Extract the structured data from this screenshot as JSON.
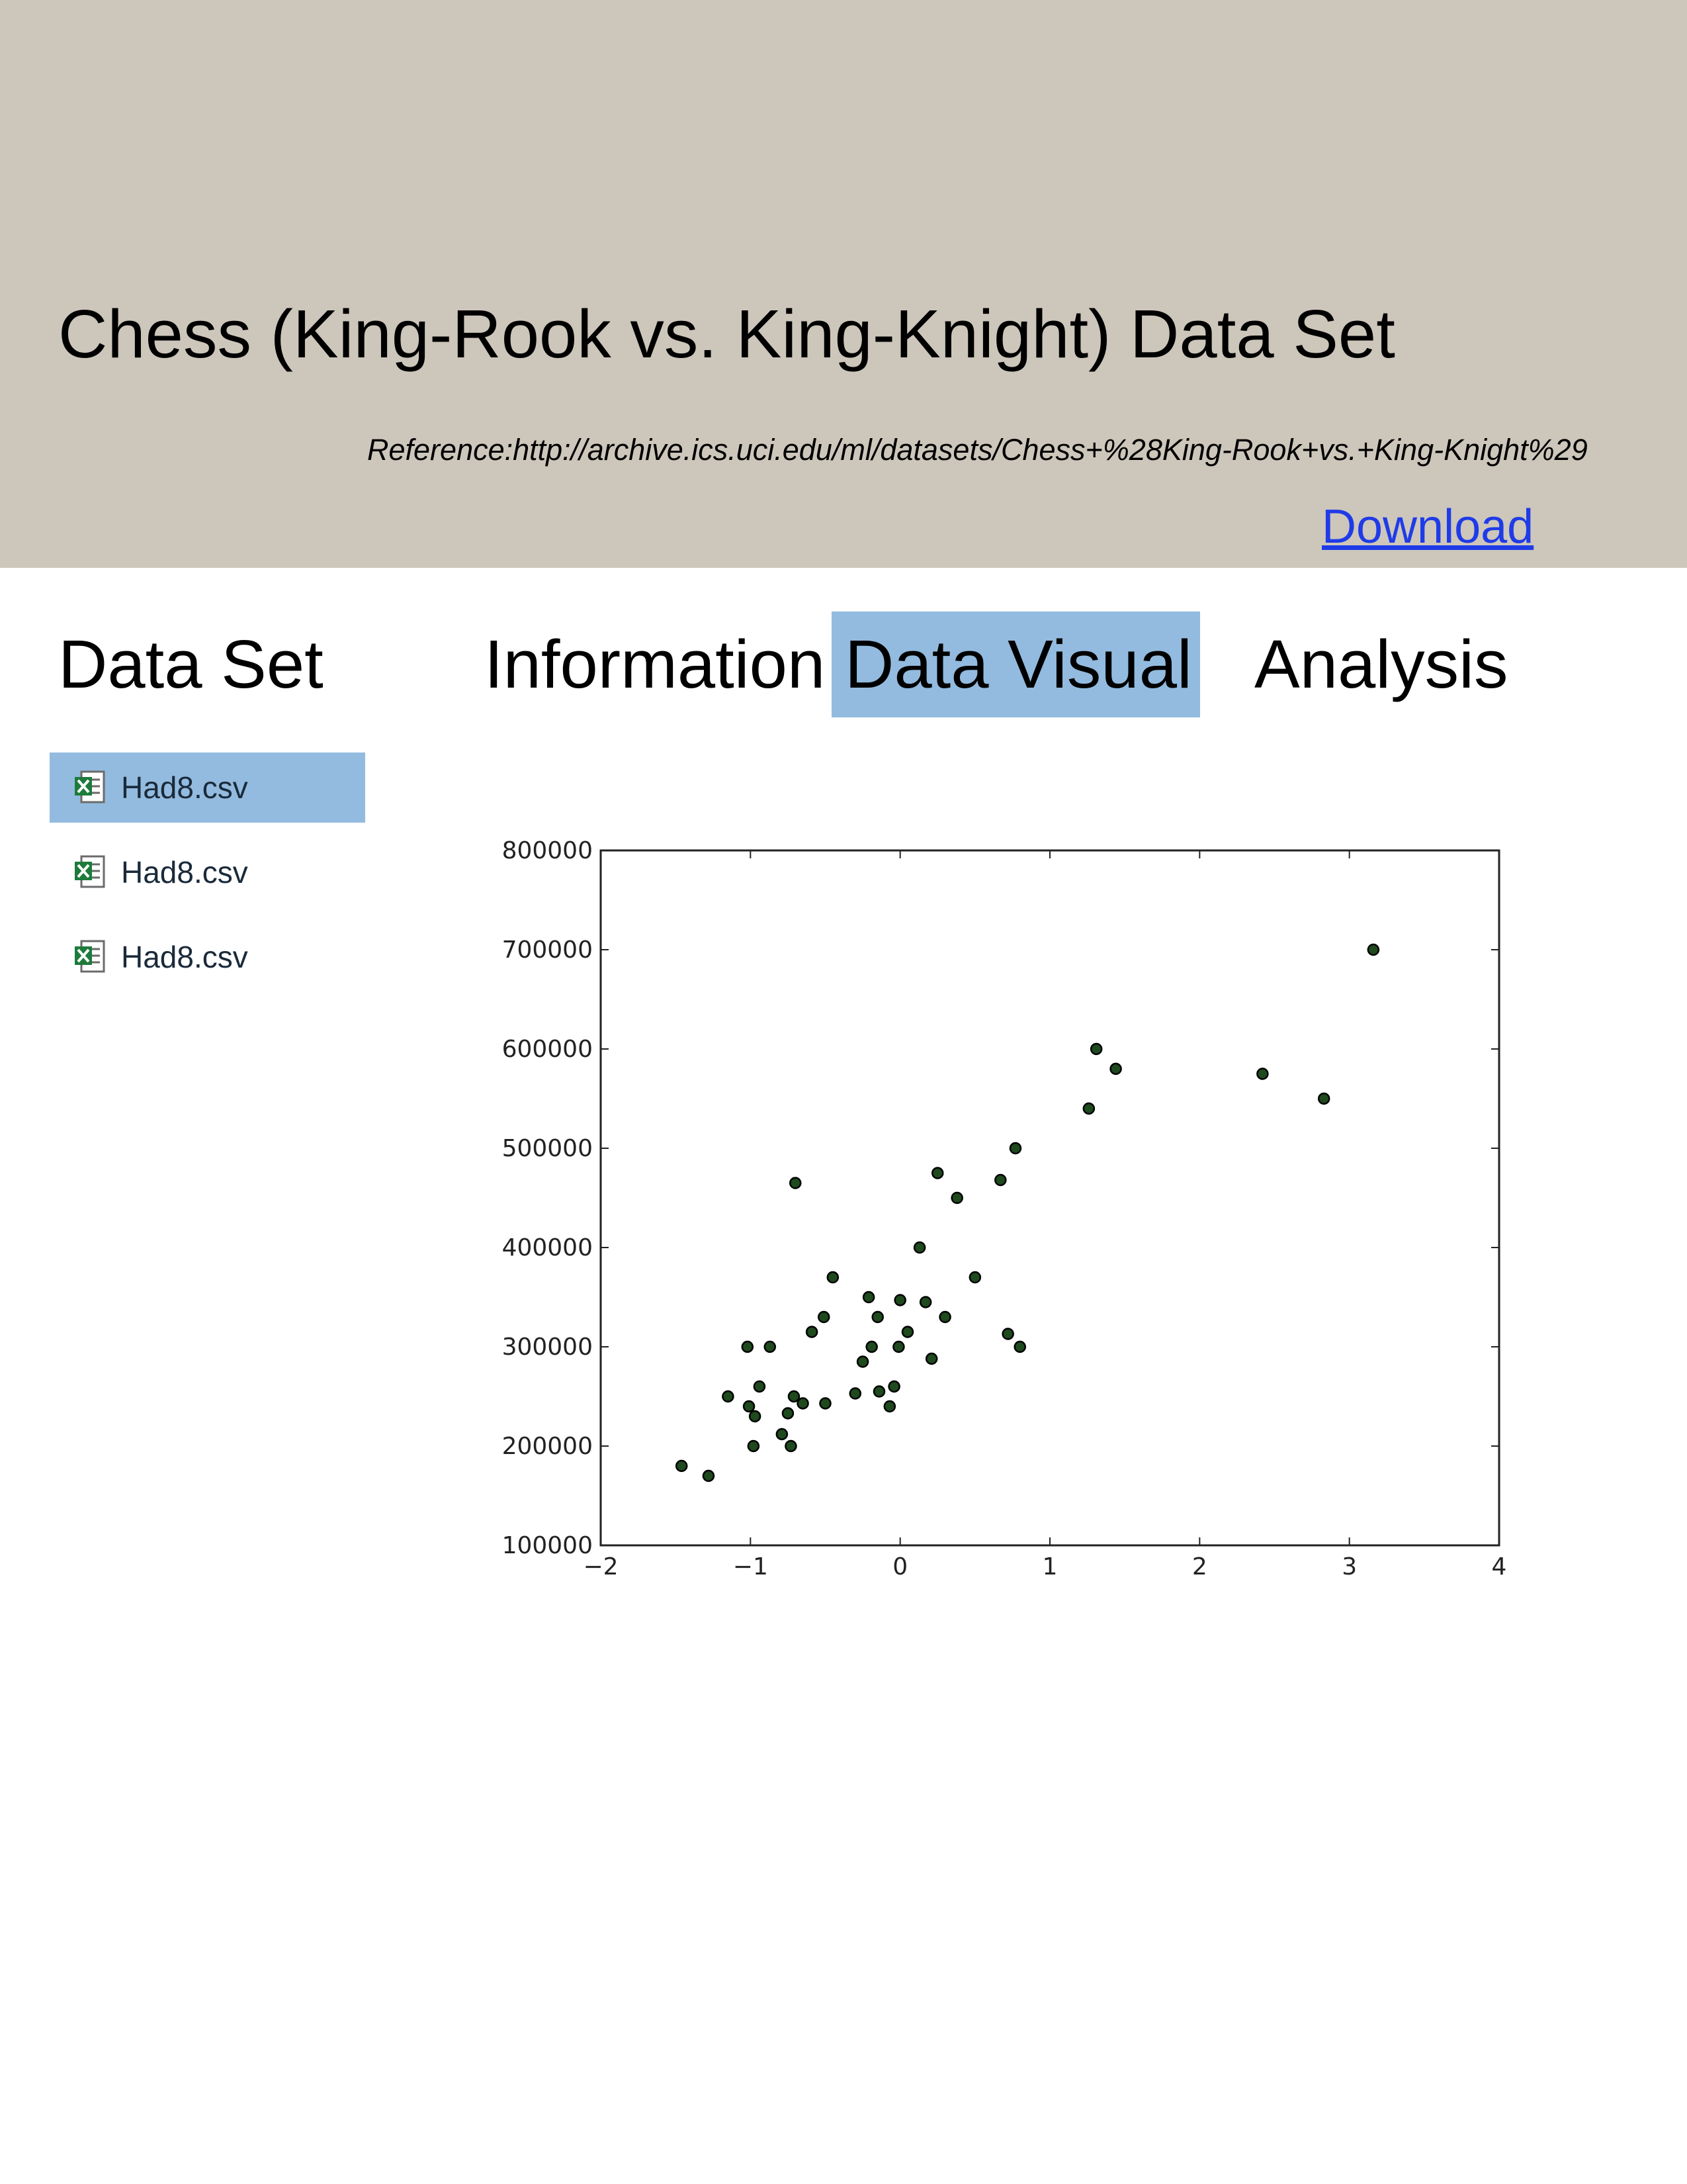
{
  "header": {
    "title": "Chess (King-Rook vs. King-Knight) Data Set",
    "reference": "Reference:http://archive.ics.uci.edu/ml/datasets/Chess+%28King-Rook+vs.+King-Knight%29",
    "download_label": "Download"
  },
  "nav": {
    "data_set": "Data Set",
    "information": "Information",
    "data_visual": "Data Visual",
    "analysis": "Analysis",
    "active": "data_visual"
  },
  "files": [
    {
      "name": "Had8.csv",
      "selected": true
    },
    {
      "name": "Had8.csv",
      "selected": false
    },
    {
      "name": "Had8.csv",
      "selected": false
    }
  ],
  "colors": {
    "header_bg": "#cdc6bb",
    "highlight": "#93bbdf",
    "link": "#1f3be8",
    "marker": "#1e4a1e"
  },
  "chart_data": {
    "type": "scatter",
    "title": "",
    "xlabel": "",
    "ylabel": "",
    "xlim": [
      -2,
      4
    ],
    "ylim": [
      100000,
      800000
    ],
    "xticks": [
      -2,
      -1,
      0,
      1,
      2,
      3,
      4
    ],
    "xtick_labels": [
      "−2",
      "−1",
      "0",
      "1",
      "2",
      "3",
      "4"
    ],
    "yticks": [
      100000,
      200000,
      300000,
      400000,
      500000,
      600000,
      700000,
      800000
    ],
    "ytick_labels": [
      "100000",
      "200000",
      "300000",
      "400000",
      "500000",
      "600000",
      "700000",
      "800000"
    ],
    "grid": false,
    "points": [
      [
        -1.46,
        180000
      ],
      [
        -1.28,
        170000
      ],
      [
        -1.15,
        250000
      ],
      [
        -1.02,
        300000
      ],
      [
        -1.01,
        240000
      ],
      [
        -0.97,
        230000
      ],
      [
        -0.98,
        200000
      ],
      [
        -0.94,
        260000
      ],
      [
        -0.87,
        300000
      ],
      [
        -0.79,
        212000
      ],
      [
        -0.75,
        233000
      ],
      [
        -0.73,
        200000
      ],
      [
        -0.71,
        250000
      ],
      [
        -0.7,
        465000
      ],
      [
        -0.65,
        243000
      ],
      [
        -0.59,
        315000
      ],
      [
        -0.51,
        330000
      ],
      [
        -0.5,
        243000
      ],
      [
        -0.45,
        370000
      ],
      [
        -0.3,
        253000
      ],
      [
        -0.25,
        285000
      ],
      [
        -0.21,
        350000
      ],
      [
        -0.19,
        300000
      ],
      [
        -0.15,
        330000
      ],
      [
        -0.14,
        255000
      ],
      [
        -0.07,
        240000
      ],
      [
        -0.04,
        260000
      ],
      [
        -0.01,
        300000
      ],
      [
        0.0,
        347000
      ],
      [
        0.05,
        315000
      ],
      [
        0.13,
        400000
      ],
      [
        0.17,
        345000
      ],
      [
        0.21,
        288000
      ],
      [
        0.25,
        475000
      ],
      [
        0.3,
        330000
      ],
      [
        0.38,
        450000
      ],
      [
        0.5,
        370000
      ],
      [
        0.67,
        468000
      ],
      [
        0.72,
        313000
      ],
      [
        0.77,
        500000
      ],
      [
        0.8,
        300000
      ],
      [
        1.26,
        540000
      ],
      [
        1.31,
        600000
      ],
      [
        1.44,
        580000
      ],
      [
        2.42,
        575000
      ],
      [
        2.83,
        550000
      ],
      [
        3.16,
        700000
      ]
    ]
  }
}
